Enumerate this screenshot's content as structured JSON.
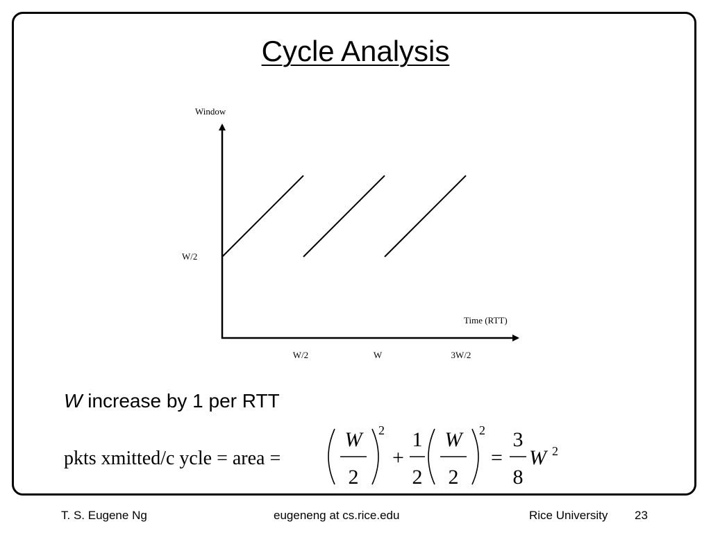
{
  "slide": {
    "title": "Cycle Analysis"
  },
  "diagram": {
    "y_axis_label": "Window",
    "x_axis_label": "Time (RTT)",
    "y_tick_labels": [
      "W/2"
    ],
    "x_tick_labels": [
      "W/2",
      "W",
      "3W/2"
    ]
  },
  "statement": {
    "variable": "W",
    "text": " increase by 1 per RTT"
  },
  "formula": {
    "lhs": "pkts xmitted/c ycle = area =",
    "var_w": "W",
    "two": "2",
    "exponent": "2",
    "plus": "+",
    "one": "1",
    "equals": "=",
    "three": "3",
    "eight": "8"
  },
  "footer": {
    "author": "T. S. Eugene Ng",
    "email": "eugeneng at cs.rice.edu",
    "institution": "Rice University",
    "page_number": "23"
  }
}
